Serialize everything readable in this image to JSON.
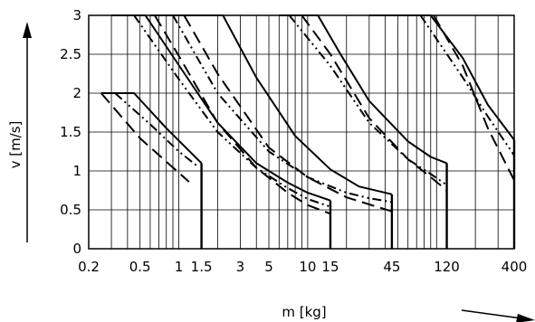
{
  "chart_data": {
    "type": "line",
    "xlabel": "m [kg]",
    "ylabel": "v [m/s]",
    "x_scale": "log",
    "xlim": [
      0.2,
      400
    ],
    "ylim": [
      0,
      3
    ],
    "x_ticks": [
      {
        "value": 0.2,
        "label": "0.2"
      },
      {
        "value": 0.5,
        "label": "0.5"
      },
      {
        "value": 1,
        "label": "1"
      },
      {
        "value": 1.5,
        "label": "1.5"
      },
      {
        "value": 3,
        "label": "3"
      },
      {
        "value": 5,
        "label": "5"
      },
      {
        "value": 10,
        "label": "10"
      },
      {
        "value": 15,
        "label": "15"
      },
      {
        "value": 45,
        "label": "45"
      },
      {
        "value": 120,
        "label": "120"
      },
      {
        "value": 400,
        "label": "400"
      }
    ],
    "y_ticks": [
      {
        "value": 0,
        "label": "0"
      },
      {
        "value": 0.5,
        "label": "0.5"
      },
      {
        "value": 1,
        "label": "1"
      },
      {
        "value": 1.5,
        "label": "1.5"
      },
      {
        "value": 2,
        "label": "2"
      },
      {
        "value": 2.5,
        "label": "2.5"
      },
      {
        "value": 3,
        "label": "3"
      }
    ],
    "grid": true,
    "series": [
      {
        "style": "dashed",
        "group": "1.5 kg",
        "points": [
          [
            0.25,
            2.0
          ],
          [
            0.5,
            1.42
          ],
          [
            0.8,
            1.12
          ],
          [
            1.2,
            0.86
          ]
        ]
      },
      {
        "style": "dashdot",
        "group": "1.5 kg",
        "points": [
          [
            0.32,
            2.0
          ],
          [
            0.6,
            1.6
          ],
          [
            1.0,
            1.25
          ],
          [
            1.4,
            1.06
          ]
        ]
      },
      {
        "style": "solid",
        "group": "1.5 kg",
        "points": [
          [
            0.25,
            2.0
          ],
          [
            0.45,
            2.0
          ],
          [
            0.8,
            1.55
          ],
          [
            1.5,
            1.1
          ]
        ]
      },
      {
        "style": "solid",
        "group": "15 kg",
        "points": [
          [
            0.3,
            3.0
          ],
          [
            0.55,
            3.0
          ],
          [
            1.0,
            2.36
          ],
          [
            2,
            1.62
          ],
          [
            4,
            1.1
          ],
          [
            7,
            0.85
          ],
          [
            10,
            0.72
          ],
          [
            15,
            0.62
          ]
        ]
      },
      {
        "style": "dashdot",
        "group": "15 kg",
        "points": [
          [
            0.45,
            3.0
          ],
          [
            1.0,
            2.18
          ],
          [
            2,
            1.5
          ],
          [
            4,
            1.04
          ],
          [
            7,
            0.78
          ],
          [
            10,
            0.64
          ],
          [
            15,
            0.54
          ]
        ]
      },
      {
        "style": "dashed",
        "group": "15 kg",
        "points": [
          [
            0.65,
            3.0
          ],
          [
            1.0,
            2.48
          ],
          [
            2,
            1.62
          ],
          [
            4,
            1.04
          ],
          [
            7,
            0.72
          ],
          [
            10,
            0.56
          ],
          [
            15,
            0.45
          ]
        ]
      },
      {
        "style": "solid",
        "group": "45 kg",
        "points": [
          [
            0.6,
            3.0
          ],
          [
            2.2,
            3.0
          ],
          [
            4,
            2.2
          ],
          [
            8,
            1.45
          ],
          [
            15,
            1.02
          ],
          [
            25,
            0.8
          ],
          [
            45,
            0.7
          ]
        ]
      },
      {
        "style": "dashdot",
        "group": "45 kg",
        "points": [
          [
            0.9,
            3.0
          ],
          [
            2,
            2.0
          ],
          [
            5,
            1.25
          ],
          [
            10,
            0.92
          ],
          [
            20,
            0.72
          ],
          [
            30,
            0.65
          ],
          [
            45,
            0.6
          ]
        ]
      },
      {
        "style": "dashed",
        "group": "45 kg",
        "points": [
          [
            1.1,
            3.0
          ],
          [
            2,
            2.25
          ],
          [
            5,
            1.3
          ],
          [
            10,
            0.92
          ],
          [
            20,
            0.66
          ],
          [
            45,
            0.48
          ]
        ]
      },
      {
        "style": "solid",
        "group": "120 kg",
        "points": [
          [
            6,
            3.0
          ],
          [
            12,
            3.0
          ],
          [
            18,
            2.5
          ],
          [
            30,
            1.9
          ],
          [
            60,
            1.38
          ],
          [
            90,
            1.18
          ],
          [
            120,
            1.1
          ]
        ]
      },
      {
        "style": "dashdot",
        "group": "120 kg",
        "points": [
          [
            7.2,
            3.0
          ],
          [
            15,
            2.35
          ],
          [
            30,
            1.62
          ],
          [
            60,
            1.15
          ],
          [
            90,
            0.96
          ],
          [
            120,
            0.82
          ]
        ]
      },
      {
        "style": "dashed",
        "group": "120 kg",
        "points": [
          [
            9,
            3.0
          ],
          [
            15,
            2.5
          ],
          [
            30,
            1.68
          ],
          [
            60,
            1.15
          ],
          [
            90,
            0.92
          ],
          [
            120,
            0.75
          ]
        ]
      },
      {
        "style": "solid",
        "group": "400 kg",
        "points": [
          [
            30,
            3.0
          ],
          [
            90,
            3.0
          ],
          [
            160,
            2.45
          ],
          [
            250,
            1.85
          ],
          [
            400,
            1.4
          ]
        ]
      },
      {
        "style": "dashdot",
        "group": "400 kg",
        "points": [
          [
            75,
            3.0
          ],
          [
            160,
            2.2
          ],
          [
            250,
            1.7
          ],
          [
            400,
            1.2
          ]
        ]
      },
      {
        "style": "dashed",
        "group": "400 kg",
        "points": [
          [
            95,
            3.0
          ],
          [
            160,
            2.35
          ],
          [
            250,
            1.55
          ],
          [
            400,
            0.88
          ]
        ]
      }
    ],
    "limits": [
      {
        "x": 1.5,
        "y_top": 1.1
      },
      {
        "x": 15,
        "y_top": 0.62
      },
      {
        "x": 45,
        "y_top": 0.7
      },
      {
        "x": 120,
        "y_top": 1.1
      },
      {
        "x": 400,
        "y_top": 1.4
      }
    ]
  }
}
